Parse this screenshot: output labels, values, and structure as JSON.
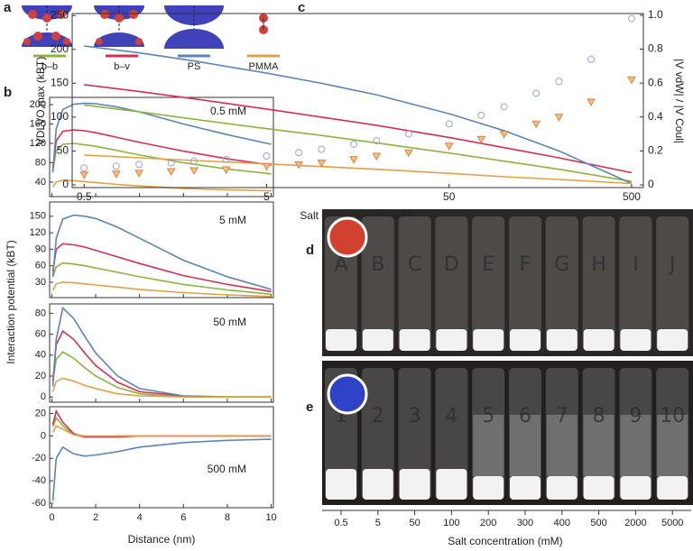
{
  "panel_labels": [
    "a",
    "b",
    "c",
    "d",
    "e"
  ],
  "schematic": {
    "labels": [
      "b–b",
      "b–v",
      "PS",
      "PMMA"
    ]
  },
  "chart_data": [
    {
      "type": "line",
      "annotation": "0.5 mM",
      "xlim": [
        -0.1,
        10.1
      ],
      "xticks": [
        0,
        2,
        4,
        6,
        8,
        10
      ],
      "ylim": [
        10,
        215
      ],
      "yticks": [
        40,
        80,
        120,
        160,
        200
      ],
      "x": [
        0.05,
        0.2,
        0.5,
        1,
        1.5,
        2,
        3,
        4,
        6,
        8,
        10
      ],
      "series": [
        {
          "color": "#8db33f",
          "values": [
            65,
            105,
            118,
            120,
            117,
            114,
            105,
            96,
            80,
            67,
            57
          ]
        },
        {
          "color": "#d42f52",
          "values": [
            70,
            125,
            145,
            148,
            146,
            142,
            132,
            122,
            104,
            88,
            75
          ]
        },
        {
          "color": "#5b84b8",
          "values": [
            60,
            150,
            190,
            201,
            203,
            202,
            195,
            185,
            160,
            138,
            118
          ]
        },
        {
          "color": "#e0a145",
          "values": [
            30,
            40,
            44,
            43,
            41,
            39,
            35,
            32,
            27,
            24,
            22
          ]
        }
      ]
    },
    {
      "type": "line",
      "annotation": "5 mM",
      "xlim": [
        -0.1,
        10.1
      ],
      "xticks": [
        0,
        2,
        4,
        6,
        8,
        10
      ],
      "ylim": [
        2,
        176
      ],
      "yticks": [
        30,
        60,
        90,
        120,
        150
      ],
      "x": [
        0.05,
        0.2,
        0.5,
        1,
        1.5,
        2,
        3,
        4,
        6,
        8,
        10
      ],
      "series": [
        {
          "color": "#8db33f",
          "values": [
            40,
            58,
            65,
            63,
            60,
            56,
            48,
            40,
            26,
            16,
            8
          ]
        },
        {
          "color": "#d42f52",
          "values": [
            50,
            90,
            100,
            98,
            94,
            88,
            76,
            64,
            42,
            26,
            13
          ]
        },
        {
          "color": "#5b84b8",
          "values": [
            40,
            110,
            145,
            152,
            150,
            146,
            130,
            110,
            70,
            40,
            17
          ]
        },
        {
          "color": "#e0a145",
          "values": [
            15,
            27,
            30,
            29,
            27,
            25,
            21,
            17,
            11,
            7,
            4
          ]
        }
      ]
    },
    {
      "type": "line",
      "annotation": "50 mM",
      "xlim": [
        -0.1,
        10.1
      ],
      "xticks": [
        0,
        2,
        4,
        6,
        8,
        10
      ],
      "ylim": [
        -5,
        89
      ],
      "yticks": [
        0,
        20,
        40,
        60,
        80
      ],
      "x": [
        0.05,
        0.2,
        0.5,
        1,
        1.5,
        2,
        3,
        4,
        6,
        8,
        10
      ],
      "series": [
        {
          "color": "#8db33f",
          "values": [
            15,
            36,
            43,
            37,
            28,
            20,
            9,
            3,
            0,
            0,
            0
          ]
        },
        {
          "color": "#d42f52",
          "values": [
            15,
            50,
            63,
            55,
            42,
            30,
            14,
            5,
            1,
            0,
            0
          ]
        },
        {
          "color": "#5b84b8",
          "values": [
            10,
            55,
            85,
            75,
            58,
            42,
            20,
            8,
            1,
            0,
            0
          ]
        },
        {
          "color": "#e0a145",
          "values": [
            5,
            15,
            18,
            15,
            11,
            8,
            3,
            1,
            0,
            0,
            0
          ]
        }
      ]
    },
    {
      "type": "line",
      "annotation": "500 mM",
      "xlabel": "Distance (nm)",
      "ylabel": "Interaction potential (kBT)",
      "xlim": [
        -0.1,
        10.1
      ],
      "xticks": [
        0,
        2,
        4,
        6,
        8,
        10
      ],
      "ylim": [
        -64,
        26
      ],
      "yticks": [
        -60,
        -40,
        -20,
        0,
        20
      ],
      "x": [
        0.05,
        0.2,
        0.5,
        1,
        1.5,
        2,
        3,
        4,
        6,
        8,
        10
      ],
      "series": [
        {
          "color": "#8db33f",
          "values": [
            8,
            16,
            9,
            1,
            -1,
            -1,
            0,
            0,
            0,
            0,
            0
          ]
        },
        {
          "color": "#d42f52",
          "values": [
            10,
            22,
            12,
            2,
            -1,
            -1,
            -1,
            0,
            0,
            0,
            0
          ]
        },
        {
          "color": "#5b84b8",
          "values": [
            -58,
            -20,
            -10,
            -16,
            -18,
            -17,
            -14,
            -10,
            -6,
            -4,
            -3
          ]
        },
        {
          "color": "#e0a145",
          "values": [
            3,
            9,
            6,
            1,
            0,
            0,
            0,
            0,
            0,
            0,
            0
          ]
        }
      ]
    },
    {
      "type": "line",
      "xlabel": "Salt concentration (mM)",
      "ylabel": "VDLVO,max (kBT)",
      "y2label": "|V vdW| / |V Coul|",
      "xlog": true,
      "xlim": [
        0.43,
        580
      ],
      "xticks": [
        0.5,
        5,
        50,
        500
      ],
      "ylim": [
        -4,
        253
      ],
      "yticks": [
        0,
        50,
        100,
        150,
        200,
        250
      ],
      "y2lim": [
        -0.016,
        1.01
      ],
      "y2ticks": [
        0,
        0.2,
        0.4,
        0.6,
        0.8,
        {
          "value": 1,
          "label": "1.0"
        }
      ],
      "x": [
        0.5,
        1,
        2,
        5,
        10,
        20,
        50,
        100,
        200,
        500
      ],
      "series": [
        {
          "color": "#8db33f",
          "values": [
            118,
            108,
            97,
            83,
            73,
            62,
            47,
            35,
            23,
            5
          ]
        },
        {
          "color": "#d42f52",
          "values": [
            148,
            138,
            127,
            112,
            100,
            88,
            70,
            55,
            40,
            18
          ]
        },
        {
          "color": "#5b84b8",
          "values": [
            205,
            195,
            183,
            165,
            150,
            133,
            105,
            80,
            50,
            2
          ]
        },
        {
          "color": "#e0a145",
          "values": [
            44,
            40,
            36,
            31,
            27,
            23,
            17,
            12,
            8,
            2
          ]
        },
        {
          "color": "#98a6c6",
          "marker": "circle",
          "axis": "y2",
          "x": [
            0.5,
            0.75,
            1,
            1.5,
            2,
            3,
            5,
            7.5,
            10,
            15,
            20,
            30,
            50,
            75,
            100,
            150,
            200,
            300,
            500
          ],
          "values": [
            0.1,
            0.11,
            0.12,
            0.13,
            0.14,
            0.15,
            0.17,
            0.19,
            0.21,
            0.24,
            0.26,
            0.3,
            0.36,
            0.41,
            0.46,
            0.54,
            0.61,
            0.74,
            0.98
          ]
        },
        {
          "color": "#e3803c",
          "marker": "triangle",
          "axis": "y2",
          "x": [
            0.5,
            0.75,
            1,
            1.5,
            2,
            3,
            5,
            7.5,
            10,
            15,
            20,
            30,
            50,
            75,
            100,
            150,
            200,
            300,
            500
          ],
          "values": [
            0.06,
            0.065,
            0.07,
            0.08,
            0.085,
            0.09,
            0.11,
            0.12,
            0.13,
            0.15,
            0.17,
            0.19,
            0.23,
            0.27,
            0.3,
            0.36,
            0.4,
            0.49,
            0.62
          ]
        }
      ]
    }
  ],
  "photos": {
    "d_vials": [
      "A",
      "B",
      "C",
      "D",
      "E",
      "F",
      "G",
      "H",
      "I",
      "J"
    ],
    "e_vials": [
      "1",
      "2",
      "3",
      "4",
      "5",
      "6",
      "7",
      "8",
      "9",
      "10"
    ],
    "categories": [
      "0.5",
      "5",
      "50",
      "100",
      "200",
      "300",
      "400",
      "500",
      "2000",
      "5000"
    ],
    "xlabel": "Salt concentration (mM)"
  }
}
